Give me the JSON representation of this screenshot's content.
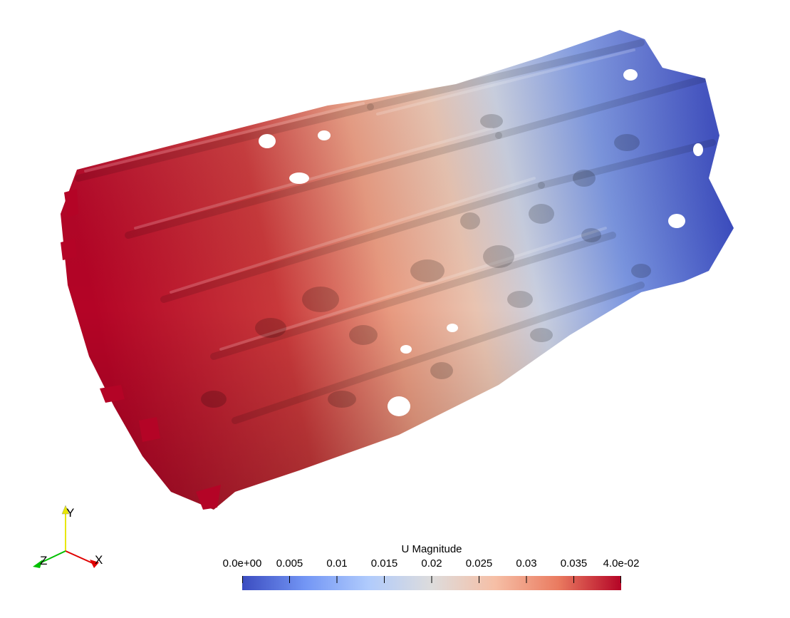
{
  "colorbar": {
    "title": "U Magnitude",
    "min": 0.0,
    "max": 0.04,
    "tick_values": [
      0.0,
      0.005,
      0.01,
      0.015,
      0.02,
      0.025,
      0.03,
      0.035,
      0.04
    ],
    "tick_labels": [
      "0.0e+00",
      "0.005",
      "0.01",
      "0.015",
      "0.02",
      "0.025",
      "0.03",
      "0.035",
      "4.0e-02"
    ],
    "colormap": "Cool to Warm",
    "colors": [
      "#3b4cc0",
      "#7396f5",
      "#b0cbfc",
      "#dddcdc",
      "#f6bfa6",
      "#ea7b60",
      "#b40426"
    ]
  },
  "axes": {
    "x_label": "X",
    "y_label": "Y",
    "z_label": "Z",
    "x_color": "#e00000",
    "y_color": "#e8e800",
    "z_color": "#00c000"
  },
  "scene": {
    "object": "trabecular-bone-scaffold",
    "background": "#ffffff"
  }
}
